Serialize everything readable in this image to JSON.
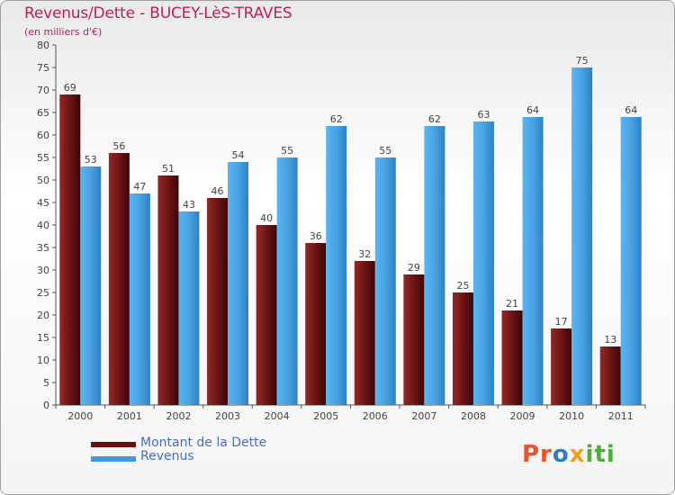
{
  "title": "Revenus/Dette - BUCEY-LèS-TRAVES",
  "subtitle": "(en milliers d'€)",
  "legend": {
    "debt": "Montant de la Dette",
    "revenue": "Revenus"
  },
  "logo": {
    "parts": [
      "Pr",
      "o",
      "x",
      "iti"
    ]
  },
  "colors": {
    "debt": "#7a1a1a",
    "revenue": "#4aa3e6",
    "title": "#c0224c"
  },
  "chart_data": {
    "type": "bar",
    "title": "Revenus/Dette - BUCEY-LèS-TRAVES",
    "ylabel": "(en milliers d'€)",
    "xlabel": "",
    "ylim": [
      0,
      80
    ],
    "yticks": [
      0,
      5,
      10,
      15,
      20,
      25,
      30,
      35,
      40,
      45,
      50,
      55,
      60,
      65,
      70,
      75,
      80
    ],
    "categories": [
      "2000",
      "2001",
      "2002",
      "2003",
      "2004",
      "2005",
      "2006",
      "2007",
      "2008",
      "2009",
      "2010",
      "2011"
    ],
    "series": [
      {
        "name": "Montant de la Dette",
        "values": [
          69,
          56,
          51,
          46,
          40,
          36,
          32,
          29,
          25,
          21,
          17,
          13
        ]
      },
      {
        "name": "Revenus",
        "values": [
          53,
          47,
          43,
          54,
          55,
          62,
          55,
          62,
          63,
          64,
          75,
          64
        ]
      }
    ],
    "grid": false,
    "legend_position": "bottom-left"
  }
}
